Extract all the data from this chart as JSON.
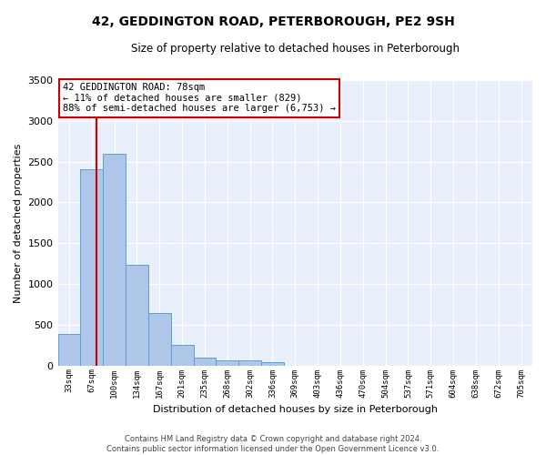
{
  "title": "42, GEDDINGTON ROAD, PETERBOROUGH, PE2 9SH",
  "subtitle": "Size of property relative to detached houses in Peterborough",
  "xlabel": "Distribution of detached houses by size in Peterborough",
  "ylabel": "Number of detached properties",
  "footer_line1": "Contains HM Land Registry data © Crown copyright and database right 2024.",
  "footer_line2": "Contains public sector information licensed under the Open Government Licence v3.0.",
  "categories": [
    "33sqm",
    "67sqm",
    "100sqm",
    "134sqm",
    "167sqm",
    "201sqm",
    "235sqm",
    "268sqm",
    "302sqm",
    "336sqm",
    "369sqm",
    "403sqm",
    "436sqm",
    "470sqm",
    "504sqm",
    "537sqm",
    "571sqm",
    "604sqm",
    "638sqm",
    "672sqm",
    "705sqm"
  ],
  "values": [
    390,
    2410,
    2600,
    1240,
    640,
    255,
    95,
    60,
    58,
    40,
    0,
    0,
    0,
    0,
    0,
    0,
    0,
    0,
    0,
    0,
    0
  ],
  "bar_color": "#aec6e8",
  "bar_edge_color": "#5a9fd4",
  "background_color": "#eaf0fb",
  "grid_color": "#ffffff",
  "vline_x": 1.22,
  "vline_color": "#cc0000",
  "annotation_text": "42 GEDDINGTON ROAD: 78sqm\n← 11% of detached houses are smaller (829)\n88% of semi-detached houses are larger (6,753) →",
  "annotation_box_color": "#ffffff",
  "annotation_box_edge": "#cc0000",
  "ylim": [
    0,
    3500
  ],
  "yticks": [
    0,
    500,
    1000,
    1500,
    2000,
    2500,
    3000,
    3500
  ]
}
